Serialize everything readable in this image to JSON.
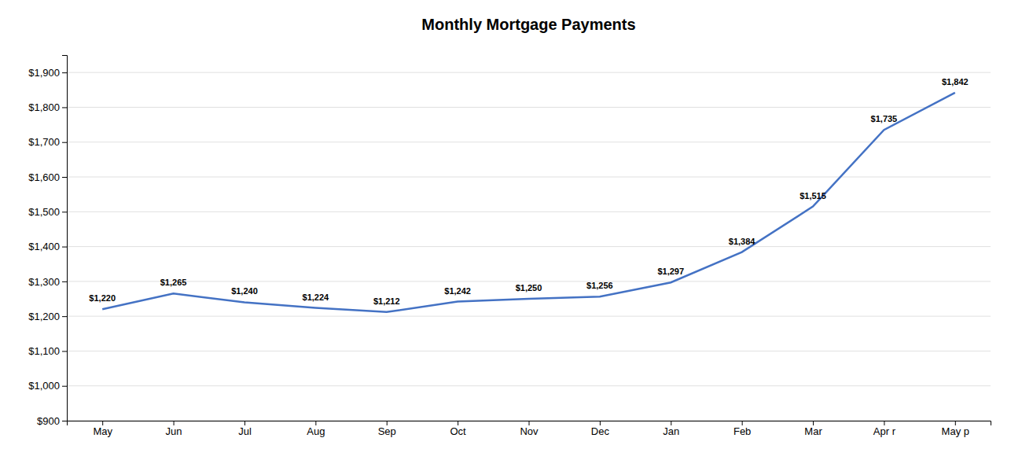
{
  "chart_data": {
    "type": "line",
    "title": "Monthly Mortgage Payments",
    "categories": [
      "May",
      "Jun",
      "Jul",
      "Aug",
      "Sep",
      "Oct",
      "Nov",
      "Dec",
      "Jan",
      "Feb",
      "Mar",
      "Apr r",
      "May p"
    ],
    "values": [
      1220,
      1265,
      1240,
      1224,
      1212,
      1242,
      1250,
      1256,
      1297,
      1384,
      1515,
      1735,
      1842
    ],
    "value_labels": [
      "$1,220",
      "$1,265",
      "$1,240",
      "$1,224",
      "$1,212",
      "$1,242",
      "$1,250",
      "$1,256",
      "$1,297",
      "$1,384",
      "$1,515",
      "$1,735",
      "$1,842"
    ],
    "color": "#4472C4",
    "ylim": [
      900,
      1950
    ],
    "yticks": [
      {
        "value": 900,
        "label": "$900"
      },
      {
        "value": 1000,
        "label": "$1,000"
      },
      {
        "value": 1100,
        "label": "$1,100"
      },
      {
        "value": 1200,
        "label": "$1,200"
      },
      {
        "value": 1300,
        "label": "$1,300"
      },
      {
        "value": 1400,
        "label": "$1,400"
      },
      {
        "value": 1500,
        "label": "$1,500"
      },
      {
        "value": 1600,
        "label": "$1,600"
      },
      {
        "value": 1700,
        "label": "$1,700"
      },
      {
        "value": 1800,
        "label": "$1,800"
      },
      {
        "value": 1900,
        "label": "$1,900"
      }
    ],
    "grid": true,
    "data_labels": true
  }
}
